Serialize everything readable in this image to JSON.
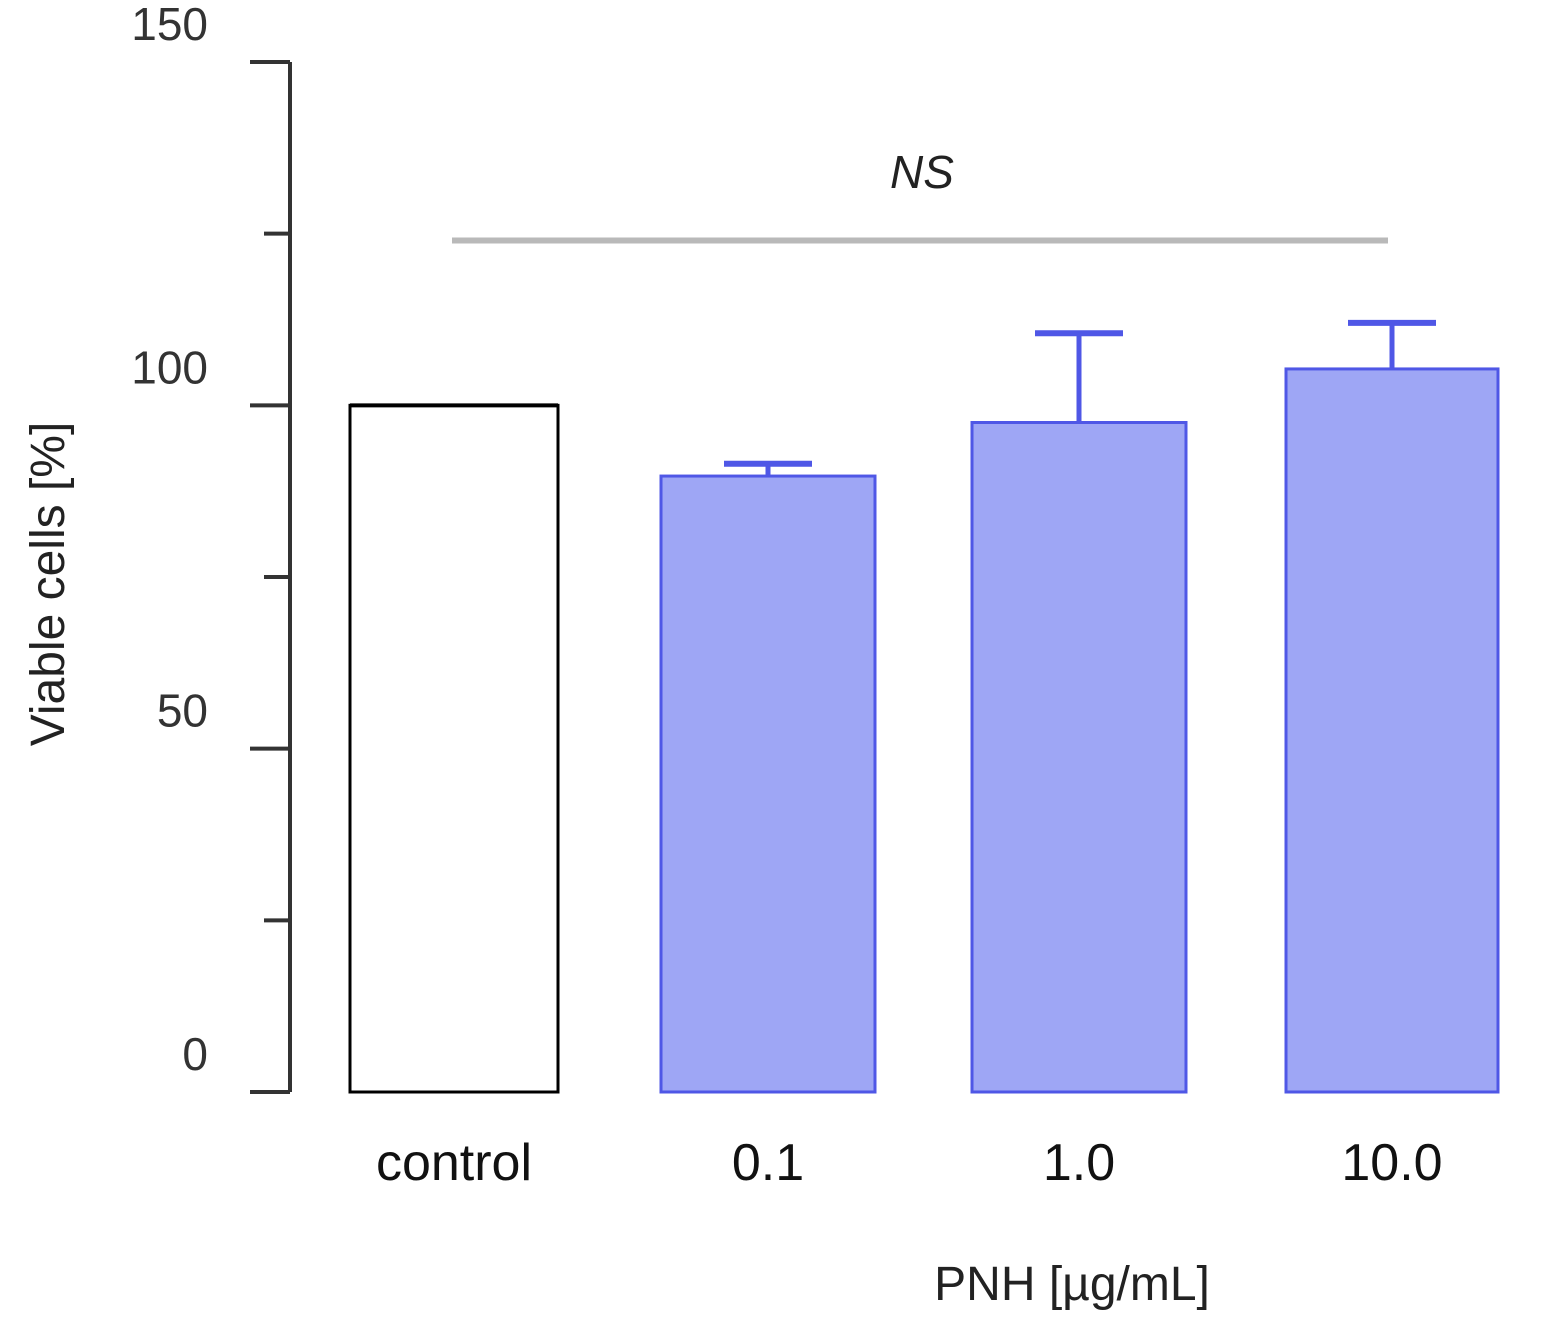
{
  "chart_data": {
    "type": "bar",
    "categories": [
      "control",
      "0.1",
      "1.0",
      "10.0"
    ],
    "values": [
      100,
      89.7,
      97.5,
      105.3
    ],
    "error_upper": [
      null,
      91.5,
      110.5,
      112
    ],
    "ylabel": "Viable cells [%]",
    "xlabel": "PNH [µg/mL]",
    "ylim": [
      0,
      150
    ],
    "yticks": [
      0,
      25,
      50,
      75,
      100,
      125,
      150
    ],
    "ytick_labels": [
      {
        "value": 150,
        "label": "150"
      },
      {
        "value": 100,
        "label": "100"
      },
      {
        "value": 50,
        "label": "50"
      },
      {
        "value": 0,
        "label": "0"
      }
    ],
    "annotation": {
      "text": "NS",
      "value": 124
    }
  },
  "colors": {
    "control_fill": "#ffffff",
    "control_stroke": "#000000",
    "treated_fill": "#9ea6f5",
    "treated_stroke": "#4f57e6",
    "axis": "#333333",
    "annotation_line": "#b9b9b9"
  }
}
